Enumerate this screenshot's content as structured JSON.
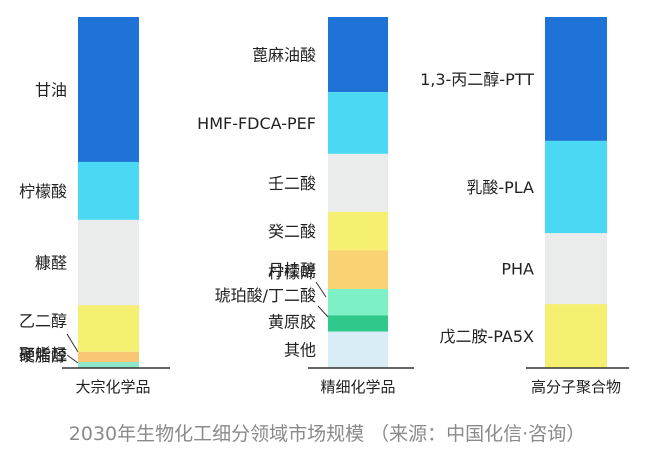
{
  "caption": "2030年生物化工细分领域市场规模 （来源：中国化信·咨询）",
  "chart_data": {
    "type": "bar",
    "stacked": true,
    "normalized": true,
    "columns": [
      {
        "category": "大宗化学品",
        "segments": [
          {
            "label": "甘油",
            "share": 0.413,
            "color": "#1f72d6"
          },
          {
            "label": "柠檬酸",
            "share": 0.165,
            "color": "#4ad8f2"
          },
          {
            "label": "糠醛",
            "share": 0.243,
            "color": "#e9ecea"
          },
          {
            "label": "乙二醇",
            "share": 0.133,
            "color": "#f5ef72"
          },
          {
            "label": "硬脂醇",
            "share": 0.029,
            "color": "#f9c774"
          },
          {
            "label": "聚烯烃",
            "share": 0.017,
            "color": "#8ee8c9"
          }
        ]
      },
      {
        "category": "精细化学品",
        "segments": [
          {
            "label": "蓖麻油酸",
            "share": 0.214,
            "color": "#1f72d6"
          },
          {
            "label": "HMF-FDCA-PEF",
            "share": 0.176,
            "color": "#4ad8f2"
          },
          {
            "label": "壬二酸",
            "share": 0.165,
            "color": "#e9ecea"
          },
          {
            "label": "癸二酸",
            "share": 0.11,
            "color": "#f5ef72"
          },
          {
            "label": "月桂醇",
            "share": 0.11,
            "color": "#f9d274"
          },
          {
            "label": "柠檬烯",
            "share": 0.0,
            "color": "#f9c774"
          },
          {
            "label": "琥珀酸/丁二酸",
            "share": 0.075,
            "color": "#7df0c5"
          },
          {
            "label": "黄原胶",
            "share": 0.046,
            "color": "#2fc98c"
          },
          {
            "label": "其他",
            "share": 0.104,
            "color": "#d9edf7"
          }
        ]
      },
      {
        "category": "高分子聚合物",
        "segments": [
          {
            "label": "1,3-丙二醇-PTT",
            "share": 0.353,
            "color": "#1f72d6"
          },
          {
            "label": "乳酸-PLA",
            "share": 0.263,
            "color": "#4ad8f2"
          },
          {
            "label": "PHA",
            "share": 0.202,
            "color": "#e9ecea"
          },
          {
            "label": "戊二胺-PA5X",
            "share": 0.182,
            "color": "#f5ef72"
          }
        ]
      }
    ]
  }
}
